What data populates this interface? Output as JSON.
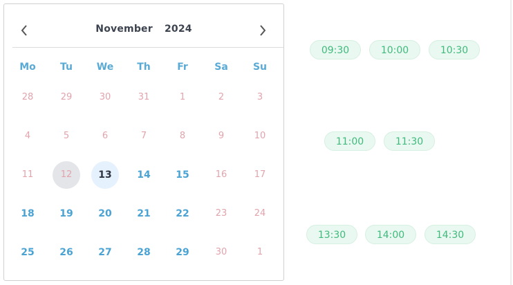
{
  "calendar": {
    "month": "November",
    "year": "2024",
    "prev_icon": "chevron-left-icon",
    "next_icon": "chevron-right-icon",
    "weekdays": [
      "Mo",
      "Tu",
      "We",
      "Th",
      "Fr",
      "Sa",
      "Su"
    ],
    "weeks": [
      [
        {
          "d": "28",
          "s": "off"
        },
        {
          "d": "29",
          "s": "off"
        },
        {
          "d": "30",
          "s": "off"
        },
        {
          "d": "31",
          "s": "off"
        },
        {
          "d": "1",
          "s": "off"
        },
        {
          "d": "2",
          "s": "off"
        },
        {
          "d": "3",
          "s": "off"
        }
      ],
      [
        {
          "d": "4",
          "s": "off"
        },
        {
          "d": "5",
          "s": "off"
        },
        {
          "d": "6",
          "s": "off"
        },
        {
          "d": "7",
          "s": "off"
        },
        {
          "d": "8",
          "s": "off"
        },
        {
          "d": "9",
          "s": "off"
        },
        {
          "d": "10",
          "s": "off"
        }
      ],
      [
        {
          "d": "11",
          "s": "off"
        },
        {
          "d": "12",
          "s": "today"
        },
        {
          "d": "13",
          "s": "selected"
        },
        {
          "d": "14",
          "s": "on"
        },
        {
          "d": "15",
          "s": "on"
        },
        {
          "d": "16",
          "s": "off"
        },
        {
          "d": "17",
          "s": "off"
        }
      ],
      [
        {
          "d": "18",
          "s": "on"
        },
        {
          "d": "19",
          "s": "on"
        },
        {
          "d": "20",
          "s": "on"
        },
        {
          "d": "21",
          "s": "on"
        },
        {
          "d": "22",
          "s": "on"
        },
        {
          "d": "23",
          "s": "off"
        },
        {
          "d": "24",
          "s": "off"
        }
      ],
      [
        {
          "d": "25",
          "s": "on"
        },
        {
          "d": "26",
          "s": "on"
        },
        {
          "d": "27",
          "s": "on"
        },
        {
          "d": "28",
          "s": "on"
        },
        {
          "d": "29",
          "s": "on"
        },
        {
          "d": "30",
          "s": "off"
        },
        {
          "d": "1",
          "s": "off"
        }
      ]
    ],
    "selected_date": "13"
  },
  "time_slots": [
    [
      "09:30",
      "10:00",
      "10:30"
    ],
    [
      "11:00",
      "11:30"
    ],
    [
      "13:30",
      "14:00",
      "14:30"
    ]
  ],
  "colors": {
    "available": "#4aa3d3",
    "disabled": "#e3a3ad",
    "slot_text": "#3fba7c",
    "slot_bg": "#e9f8f0",
    "selected_bg": "#e5f1fc"
  }
}
